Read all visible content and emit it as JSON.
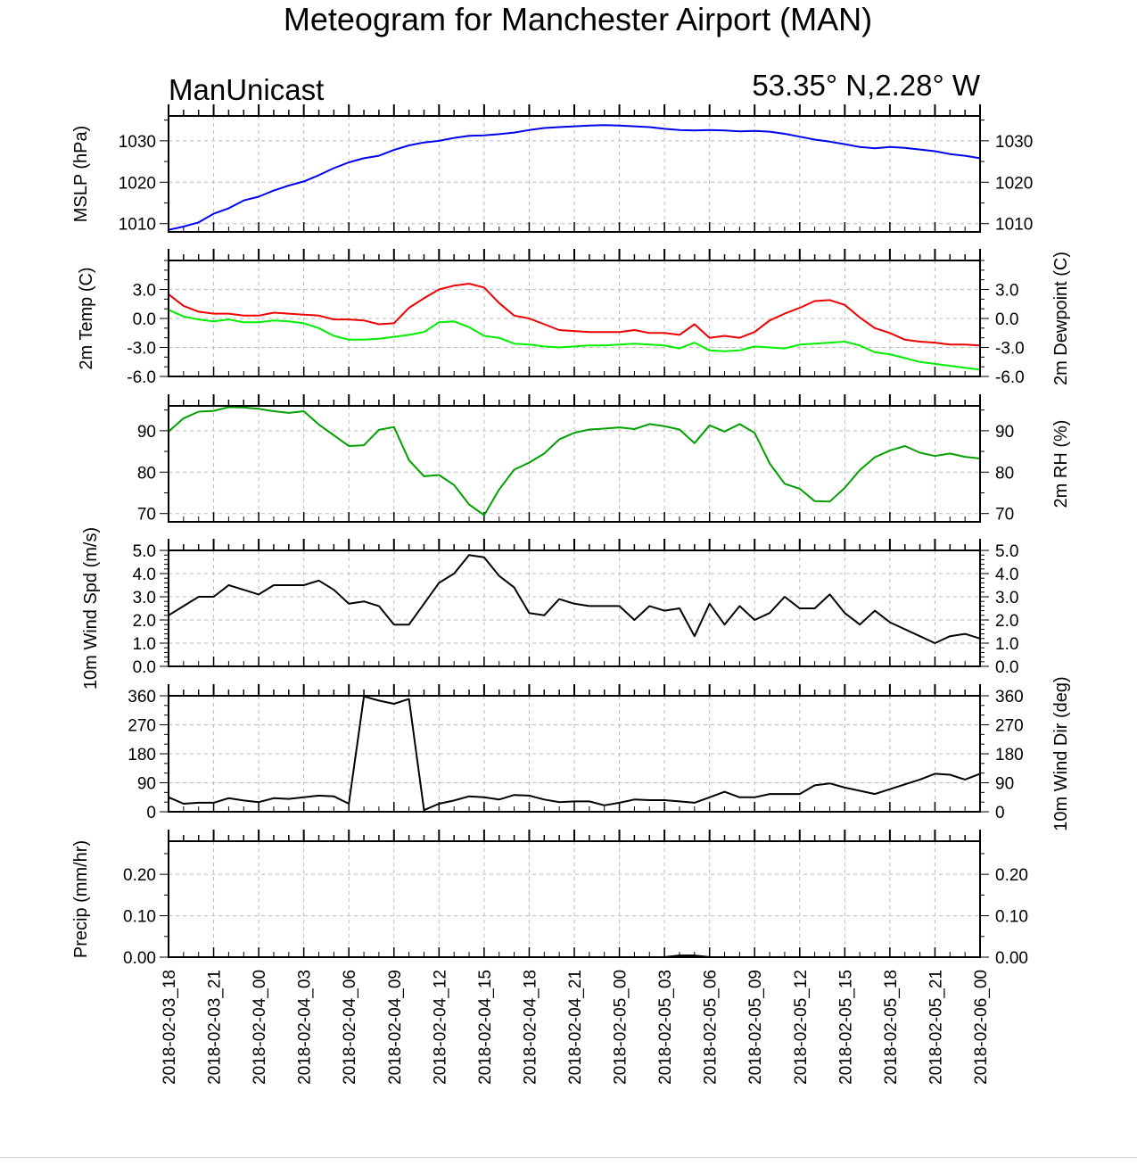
{
  "title": "Meteogram for Manchester Airport (MAN)",
  "subtitle_left": "ManUnicast",
  "subtitle_right": "53.35° N,2.28° W",
  "colors": {
    "mslp": "#0000ee",
    "temp": "#ee0000",
    "dewpoint": "#00ee00",
    "rh": "#00a000",
    "wind": "#000000",
    "grid": "#bbbbbb"
  },
  "time_labels": [
    "2018-02-03_18",
    "2018-02-03_21",
    "2018-02-04_00",
    "2018-02-04_03",
    "2018-02-04_06",
    "2018-02-04_09",
    "2018-02-04_12",
    "2018-02-04_15",
    "2018-02-04_18",
    "2018-02-04_21",
    "2018-02-05_00",
    "2018-02-05_03",
    "2018-02-05_06",
    "2018-02-05_09",
    "2018-02-05_12",
    "2018-02-05_15",
    "2018-02-05_18",
    "2018-02-05_21",
    "2018-02-06_00"
  ],
  "chart_data": [
    {
      "type": "line",
      "ylabel": "MSLP (hPa)",
      "ylim": [
        1008,
        1036
      ],
      "ticks": [
        1010,
        1020,
        1030
      ],
      "tick_labels": [
        "1010",
        "1020",
        "1030"
      ],
      "x_hours": [
        0,
        1,
        2,
        3,
        4,
        5,
        6,
        7,
        8,
        9,
        10,
        11,
        12,
        13,
        14,
        15,
        16,
        17,
        18,
        19,
        20,
        21,
        22,
        23,
        24,
        25,
        26,
        27,
        28,
        29,
        30,
        31,
        32,
        33,
        34,
        35,
        36,
        37,
        38,
        39,
        40,
        41,
        42,
        43,
        44,
        45,
        46,
        47,
        48,
        49,
        50,
        51,
        52,
        53,
        54
      ],
      "series": [
        {
          "values": [
            1008.5,
            1009.3,
            1010.3,
            1012.4,
            1013.7,
            1015.6,
            1016.5,
            1018.0,
            1019.2,
            1020.2,
            1021.7,
            1023.4,
            1024.8,
            1025.8,
            1026.4,
            1027.8,
            1028.9,
            1029.6,
            1030.0,
            1030.7,
            1031.2,
            1031.3,
            1031.6,
            1032.0,
            1032.6,
            1033.1,
            1033.3,
            1033.5,
            1033.7,
            1033.8,
            1033.7,
            1033.5,
            1033.3,
            1032.9,
            1032.6,
            1032.5,
            1032.6,
            1032.5,
            1032.3,
            1032.4,
            1032.2,
            1031.7,
            1031.0,
            1030.3,
            1029.8,
            1029.2,
            1028.5,
            1028.2,
            1028.5,
            1028.3,
            1027.9,
            1027.5,
            1026.8,
            1026.4,
            1025.8
          ],
          "color_key": "mslp"
        }
      ]
    },
    {
      "type": "line",
      "ylabel": "2m Temp (C)",
      "ylabel_right": "2m Dewpoint (C)",
      "ylim": [
        -6,
        6
      ],
      "ticks": [
        -6,
        -3,
        0,
        3
      ],
      "tick_labels": [
        "-6.0",
        "-3.0",
        "0.0",
        "3.0"
      ],
      "x_hours": [
        0,
        1,
        2,
        3,
        4,
        5,
        6,
        7,
        8,
        9,
        10,
        11,
        12,
        13,
        14,
        15,
        16,
        17,
        18,
        19,
        20,
        21,
        22,
        23,
        24,
        25,
        26,
        27,
        28,
        29,
        30,
        31,
        32,
        33,
        34,
        35,
        36,
        37,
        38,
        39,
        40,
        41,
        42,
        43,
        44,
        45,
        46,
        47,
        48,
        49,
        50,
        51,
        52,
        53,
        54
      ],
      "series": [
        {
          "values": [
            2.5,
            1.3,
            0.7,
            0.5,
            0.5,
            0.3,
            0.3,
            0.6,
            0.5,
            0.4,
            0.3,
            -0.1,
            -0.1,
            -0.2,
            -0.6,
            -0.5,
            1.1,
            2.1,
            3.0,
            3.4,
            3.6,
            3.2,
            1.6,
            0.3,
            0.0,
            -0.6,
            -1.2,
            -1.3,
            -1.4,
            -1.4,
            -1.4,
            -1.2,
            -1.5,
            -1.5,
            -1.7,
            -0.6,
            -2.0,
            -1.8,
            -2.0,
            -1.4,
            -0.2,
            0.5,
            1.1,
            1.8,
            1.9,
            1.4,
            0.1,
            -1.0,
            -1.5,
            -2.2,
            -2.4,
            -2.5,
            -2.7,
            -2.7,
            -2.8
          ],
          "color_key": "temp"
        },
        {
          "values": [
            0.9,
            0.2,
            -0.1,
            -0.3,
            -0.1,
            -0.4,
            -0.4,
            -0.2,
            -0.3,
            -0.5,
            -1.0,
            -1.8,
            -2.2,
            -2.2,
            -2.1,
            -1.9,
            -1.7,
            -1.4,
            -0.4,
            -0.3,
            -0.9,
            -1.8,
            -2.0,
            -2.6,
            -2.7,
            -2.9,
            -3.0,
            -2.9,
            -2.8,
            -2.8,
            -2.7,
            -2.6,
            -2.7,
            -2.8,
            -3.1,
            -2.5,
            -3.3,
            -3.4,
            -3.3,
            -2.9,
            -3.0,
            -3.1,
            -2.7,
            -2.6,
            -2.5,
            -2.4,
            -2.8,
            -3.5,
            -3.7,
            -4.1,
            -4.5,
            -4.7,
            -4.9,
            -5.1,
            -5.3
          ],
          "color_key": "dewpoint"
        }
      ]
    },
    {
      "type": "line",
      "ylabel": "2m RH (%)",
      "ylim": [
        68,
        96
      ],
      "ticks": [
        70,
        80,
        90
      ],
      "tick_labels": [
        "70",
        "80",
        "90"
      ],
      "x_hours": [
        0,
        1,
        2,
        3,
        4,
        5,
        6,
        7,
        8,
        9,
        10,
        11,
        12,
        13,
        14,
        15,
        16,
        17,
        18,
        19,
        20,
        21,
        22,
        23,
        24,
        25,
        26,
        27,
        28,
        29,
        30,
        31,
        32,
        33,
        34,
        35,
        36,
        37,
        38,
        39,
        40,
        41,
        42,
        43,
        44,
        45,
        46,
        47,
        48,
        49,
        50,
        51,
        52,
        53,
        54
      ],
      "series": [
        {
          "values": [
            89.8,
            93.0,
            94.6,
            94.8,
            95.7,
            95.6,
            95.3,
            94.7,
            94.3,
            94.7,
            91.5,
            88.9,
            86.3,
            86.5,
            90.2,
            90.9,
            82.9,
            79.0,
            79.3,
            76.9,
            72.2,
            69.6,
            75.8,
            80.6,
            82.3,
            84.5,
            87.9,
            89.5,
            90.3,
            90.5,
            90.8,
            90.4,
            91.6,
            91.1,
            90.3,
            87.0,
            91.3,
            89.8,
            91.6,
            89.5,
            82.1,
            77.2,
            76.0,
            73.0,
            72.9,
            76.2,
            80.5,
            83.6,
            85.2,
            86.3,
            84.7,
            83.9,
            84.5,
            83.7,
            83.3
          ],
          "color_key": "rh"
        }
      ]
    },
    {
      "type": "line",
      "ylabel": "10m Wind Spd (m/s)",
      "ylim": [
        0,
        5
      ],
      "ticks": [
        0,
        1,
        2,
        3,
        4,
        5
      ],
      "tick_labels": [
        "0.0",
        "1.0",
        "2.0",
        "3.0",
        "4.0",
        "5.0"
      ],
      "x_hours": [
        0,
        1,
        2,
        3,
        4,
        5,
        6,
        7,
        8,
        9,
        10,
        11,
        12,
        13,
        14,
        15,
        16,
        17,
        18,
        19,
        20,
        21,
        22,
        23,
        24,
        25,
        26,
        27,
        28,
        29,
        30,
        31,
        32,
        33,
        34,
        35,
        36,
        37,
        38,
        39,
        40,
        41,
        42,
        43,
        44,
        45,
        46,
        47,
        48,
        49,
        50,
        51,
        52,
        53,
        54
      ],
      "series": [
        {
          "values": [
            2.2,
            2.6,
            3.0,
            3.0,
            3.5,
            3.3,
            3.1,
            3.5,
            3.5,
            3.5,
            3.7,
            3.3,
            2.7,
            2.8,
            2.6,
            1.8,
            1.8,
            2.7,
            3.6,
            4.0,
            4.8,
            4.7,
            3.9,
            3.4,
            2.3,
            2.2,
            2.9,
            2.7,
            2.6,
            2.6,
            2.6,
            2.0,
            2.6,
            2.4,
            2.5,
            1.3,
            2.7,
            1.8,
            2.6,
            2.0,
            2.3,
            3.0,
            2.5,
            2.5,
            3.1,
            2.3,
            1.8,
            2.4,
            1.9,
            1.6,
            1.3,
            1.0,
            1.3,
            1.4,
            1.2
          ],
          "color_key": "wind"
        }
      ]
    },
    {
      "type": "line",
      "ylabel": "10m Wind Dir (deg)",
      "ylim": [
        0,
        360
      ],
      "ticks": [
        0,
        90,
        180,
        270,
        360
      ],
      "tick_labels": [
        "0",
        "90",
        "180",
        "270",
        "360"
      ],
      "x_hours": [
        0,
        1,
        2,
        3,
        4,
        5,
        6,
        7,
        8,
        9,
        10,
        11,
        12,
        13,
        14,
        15,
        16,
        17,
        18,
        19,
        20,
        21,
        22,
        23,
        24,
        25,
        26,
        27,
        28,
        29,
        30,
        31,
        32,
        33,
        34,
        35,
        36,
        37,
        38,
        39,
        40,
        41,
        42,
        43,
        44,
        45,
        46,
        47,
        48,
        49,
        50,
        51,
        52,
        53,
        54
      ],
      "series": [
        {
          "values": [
            45,
            25,
            28,
            28,
            42,
            35,
            30,
            42,
            40,
            45,
            50,
            48,
            25,
            358,
            345,
            335,
            350,
            5,
            25,
            35,
            48,
            45,
            38,
            52,
            50,
            38,
            30,
            32,
            32,
            20,
            28,
            38,
            36,
            36,
            32,
            28,
            45,
            62,
            45,
            45,
            55,
            55,
            55,
            82,
            88,
            75,
            65,
            55,
            70,
            85,
            100,
            118,
            115,
            100,
            118
          ],
          "color_key": "wind"
        }
      ]
    },
    {
      "type": "line",
      "ylabel": "Precip (mm/hr)",
      "ylim": [
        0,
        0.28
      ],
      "ticks": [
        0,
        0.1,
        0.2
      ],
      "tick_labels": [
        "0.00",
        "0.10",
        "0.20"
      ],
      "x_hours": [
        0,
        1,
        2,
        3,
        4,
        5,
        6,
        7,
        8,
        9,
        10,
        11,
        12,
        13,
        14,
        15,
        16,
        17,
        18,
        19,
        20,
        21,
        22,
        23,
        24,
        25,
        26,
        27,
        28,
        29,
        30,
        31,
        32,
        33,
        34,
        35,
        36,
        37,
        38,
        39,
        40,
        41,
        42,
        43,
        44,
        45,
        46,
        47,
        48,
        49,
        50,
        51,
        52,
        53,
        54
      ],
      "series": [
        {
          "values": [
            0,
            0,
            0,
            0,
            0,
            0,
            0,
            0,
            0,
            0,
            0,
            0,
            0,
            0,
            0,
            0,
            0,
            0,
            0,
            0,
            0,
            0,
            0,
            0,
            0,
            0,
            0,
            0,
            0,
            0,
            0,
            0,
            0,
            0,
            0.004,
            0.004,
            0,
            0,
            0,
            0,
            0,
            0,
            0,
            0,
            0,
            0,
            0,
            0,
            0,
            0,
            0,
            0,
            0,
            0,
            0
          ],
          "color_key": "wind"
        }
      ]
    }
  ]
}
